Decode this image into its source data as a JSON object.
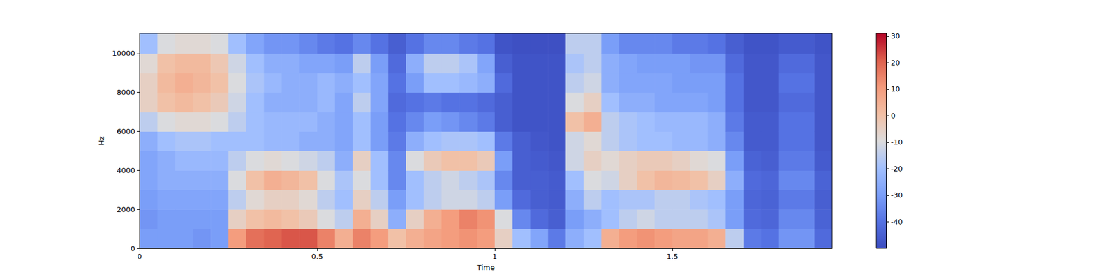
{
  "chart_data": {
    "type": "heatmap",
    "x_label": "Time",
    "y_label": "Hz",
    "xlim": [
      0,
      1.95
    ],
    "xticks": [
      0,
      0.5,
      1,
      1.5
    ],
    "ylim": [
      0,
      11025
    ],
    "yticks": [
      0,
      2000,
      4000,
      6000,
      8000,
      10000
    ],
    "x_edges": [
      0,
      0.05,
      0.1,
      0.15,
      0.2,
      0.25,
      0.3,
      0.35,
      0.4,
      0.45,
      0.5,
      0.55,
      0.6,
      0.65,
      0.7,
      0.75,
      0.8,
      0.85,
      0.9,
      0.95,
      1.0,
      1.05,
      1.1,
      1.15,
      1.2,
      1.25,
      1.3,
      1.35,
      1.4,
      1.45,
      1.5,
      1.55,
      1.6,
      1.65,
      1.7,
      1.75,
      1.8,
      1.85,
      1.9,
      1.95
    ],
    "y_edges": [
      0,
      1000,
      2000,
      3000,
      4000,
      5000,
      6000,
      7000,
      8000,
      9000,
      10000,
      11025
    ],
    "cells": [
      [
        -30,
        -32,
        -30,
        -28,
        -28,
        -25,
        -15,
        -5,
        -5,
        -8,
        -20
      ],
      [
        -30,
        -30,
        -28,
        -25,
        -25,
        -20,
        -10,
        0,
        2,
        0,
        -10
      ],
      [
        -30,
        -30,
        -28,
        -25,
        -22,
        -18,
        -8,
        2,
        5,
        2,
        -8
      ],
      [
        -32,
        -30,
        -28,
        -25,
        -22,
        -18,
        -8,
        0,
        3,
        2,
        -8
      ],
      [
        -30,
        -30,
        -28,
        -25,
        -22,
        -20,
        -10,
        -3,
        0,
        -2,
        -10
      ],
      [
        10,
        -5,
        -15,
        -10,
        -15,
        -20,
        -15,
        -12,
        -10,
        -12,
        -20
      ],
      [
        18,
        0,
        -8,
        0,
        -10,
        -20,
        -20,
        -20,
        -18,
        -20,
        -28
      ],
      [
        20,
        2,
        -5,
        5,
        -8,
        -22,
        -22,
        -25,
        -22,
        -25,
        -32
      ],
      [
        22,
        0,
        -5,
        3,
        -10,
        -22,
        -22,
        -25,
        -25,
        -25,
        -32
      ],
      [
        22,
        -3,
        -8,
        0,
        -12,
        -25,
        -22,
        -25,
        -25,
        -28,
        -35
      ],
      [
        15,
        -10,
        -15,
        -10,
        -15,
        -25,
        -25,
        -22,
        -22,
        -28,
        -38
      ],
      [
        5,
        -15,
        -20,
        -18,
        -25,
        -28,
        -28,
        -28,
        -25,
        -30,
        -40
      ],
      [
        15,
        5,
        -5,
        -10,
        -5,
        -20,
        -20,
        -15,
        -20,
        -15,
        -35
      ],
      [
        10,
        -5,
        -15,
        -20,
        -20,
        -30,
        -30,
        -28,
        -28,
        -30,
        -40
      ],
      [
        0,
        -25,
        -30,
        -35,
        -35,
        -38,
        -40,
        -42,
        -40,
        -42,
        -45
      ],
      [
        5,
        -5,
        -20,
        -20,
        -10,
        -25,
        -35,
        -40,
        -30,
        -25,
        -40
      ],
      [
        8,
        5,
        -15,
        -15,
        -3,
        -20,
        -30,
        -38,
        -20,
        -15,
        -35
      ],
      [
        10,
        10,
        -12,
        -12,
        0,
        -18,
        -32,
        -40,
        -20,
        -15,
        -35
      ],
      [
        12,
        15,
        -12,
        -15,
        0,
        -18,
        -35,
        -40,
        -22,
        -18,
        -38
      ],
      [
        10,
        12,
        -15,
        -18,
        -3,
        -20,
        -38,
        -42,
        -25,
        -28,
        -40
      ],
      [
        -5,
        -10,
        -30,
        -35,
        -30,
        -38,
        -45,
        -45,
        -42,
        -45,
        -48
      ],
      [
        -20,
        -35,
        -42,
        -45,
        -45,
        -45,
        -48,
        -48,
        -48,
        -48,
        -49
      ],
      [
        -28,
        -42,
        -45,
        -45,
        -46,
        -47,
        -48,
        -48,
        -48,
        -48,
        -49
      ],
      [
        -38,
        -45,
        -46,
        -46,
        -47,
        -48,
        -48,
        -48,
        -48,
        -48,
        -49
      ],
      [
        -25,
        -30,
        -25,
        -20,
        -12,
        -12,
        0,
        -10,
        -15,
        -18,
        -15
      ],
      [
        -20,
        -25,
        -15,
        -10,
        -5,
        -8,
        5,
        -5,
        -12,
        -15,
        -15
      ],
      [
        5,
        -20,
        -20,
        -12,
        -8,
        -15,
        -15,
        -20,
        -25,
        -25,
        -30
      ],
      [
        10,
        -15,
        -18,
        -5,
        -5,
        -18,
        -18,
        -25,
        -28,
        -28,
        -35
      ],
      [
        12,
        -12,
        -18,
        0,
        -3,
        -20,
        -20,
        -25,
        -28,
        -30,
        -35
      ],
      [
        10,
        -15,
        -15,
        3,
        -3,
        -20,
        -22,
        -28,
        -28,
        -30,
        -35
      ],
      [
        8,
        -15,
        -15,
        2,
        -5,
        -22,
        -22,
        -28,
        -30,
        -30,
        -38
      ],
      [
        8,
        -15,
        -18,
        0,
        -8,
        -22,
        -22,
        -28,
        -30,
        -32,
        -38
      ],
      [
        5,
        -18,
        -20,
        -5,
        -10,
        -25,
        -25,
        -30,
        -30,
        -32,
        -40
      ],
      [
        -15,
        -30,
        -30,
        -25,
        -30,
        -35,
        -38,
        -40,
        -40,
        -42,
        -45
      ],
      [
        -38,
        -42,
        -43,
        -42,
        -44,
        -46,
        -46,
        -47,
        -47,
        -47,
        -48
      ],
      [
        -40,
        -43,
        -44,
        -43,
        -45,
        -46,
        -46,
        -47,
        -47,
        -47,
        -48
      ],
      [
        -32,
        -35,
        -38,
        -35,
        -38,
        -40,
        -40,
        -42,
        -40,
        -42,
        -46
      ],
      [
        -32,
        -35,
        -38,
        -35,
        -38,
        -40,
        -40,
        -42,
        -40,
        -42,
        -46
      ],
      [
        -42,
        -44,
        -45,
        -44,
        -46,
        -47,
        -47,
        -47,
        -47,
        -47,
        -48
      ]
    ],
    "colorbar": {
      "range": [
        -50,
        31
      ],
      "ticks": [
        -40,
        -30,
        -20,
        -10,
        0,
        10,
        20,
        30
      ]
    }
  }
}
